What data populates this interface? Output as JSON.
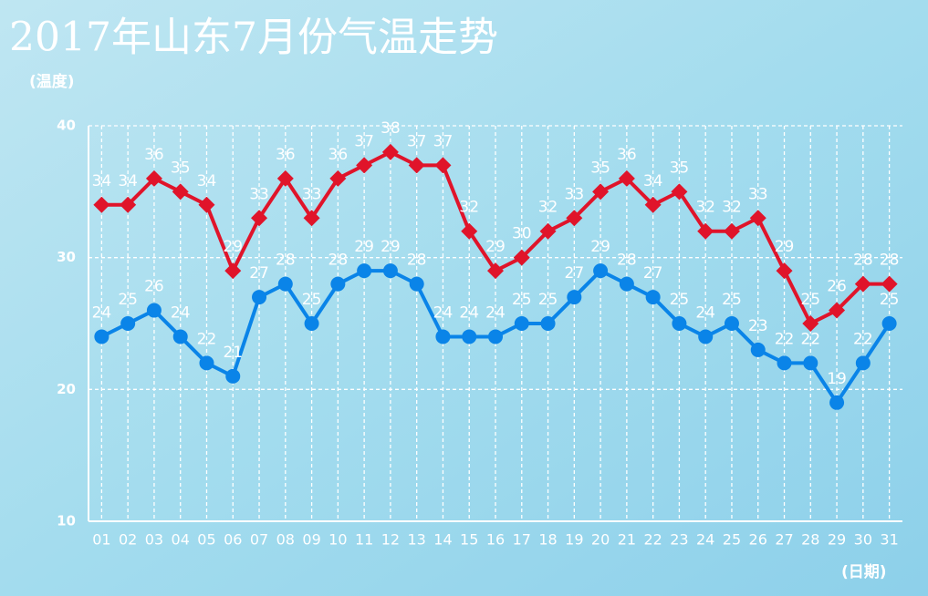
{
  "chart_data": {
    "type": "line",
    "title": "2017年山东7月份气温走势",
    "y_label": "(温度)",
    "x_label": "(日期)",
    "categories": [
      "01",
      "02",
      "03",
      "04",
      "05",
      "06",
      "07",
      "08",
      "09",
      "10",
      "11",
      "12",
      "13",
      "14",
      "15",
      "16",
      "17",
      "18",
      "19",
      "20",
      "21",
      "22",
      "23",
      "24",
      "25",
      "26",
      "27",
      "28",
      "29",
      "30",
      "31"
    ],
    "series": [
      {
        "color": "#e0142a",
        "marker": "diamond",
        "values": [
          34,
          34,
          36,
          35,
          34,
          29,
          33,
          36,
          33,
          36,
          37,
          38,
          37,
          37,
          32,
          29,
          30,
          32,
          33,
          35,
          36,
          34,
          35,
          32,
          32,
          33,
          29,
          25,
          26,
          28,
          28
        ]
      },
      {
        "color": "#0a84e8",
        "marker": "circle",
        "values": [
          24,
          25,
          26,
          24,
          22,
          21,
          27,
          28,
          25,
          28,
          29,
          29,
          28,
          24,
          24,
          24,
          25,
          25,
          27,
          29,
          28,
          27,
          25,
          24,
          25,
          23,
          22,
          22,
          19,
          22,
          25
        ]
      }
    ],
    "ylim": [
      10,
      40
    ],
    "yticks": [
      10,
      20,
      30,
      40
    ],
    "grid": true
  }
}
